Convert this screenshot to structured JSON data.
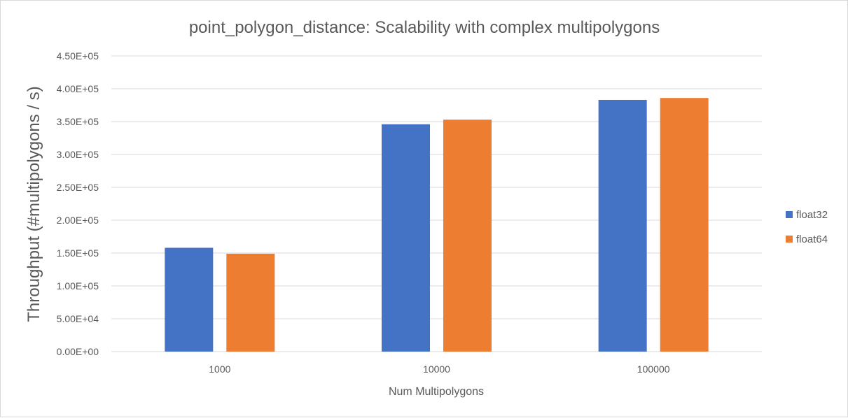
{
  "chart_data": {
    "type": "bar",
    "title": "point_polygon_distance: Scalability with complex multipolygons",
    "xlabel": "Num Multipolygons",
    "ylabel": "Throughput (#multipolygons / s)",
    "categories": [
      "1000",
      "10000",
      "100000"
    ],
    "series": [
      {
        "name": "float32",
        "color": "#4472c4",
        "values": [
          158000,
          346000,
          383000
        ]
      },
      {
        "name": "float64",
        "color": "#ed7d31",
        "values": [
          149000,
          353000,
          386000
        ]
      }
    ],
    "ylim": [
      0,
      450000
    ],
    "yticks": [
      {
        "value": 0,
        "label": "0.00E+00"
      },
      {
        "value": 50000,
        "label": "5.00E+04"
      },
      {
        "value": 100000,
        "label": "1.00E+05"
      },
      {
        "value": 150000,
        "label": "1.50E+05"
      },
      {
        "value": 200000,
        "label": "2.00E+05"
      },
      {
        "value": 250000,
        "label": "2.50E+05"
      },
      {
        "value": 300000,
        "label": "3.00E+05"
      },
      {
        "value": 350000,
        "label": "3.50E+05"
      },
      {
        "value": 400000,
        "label": "4.00E+05"
      },
      {
        "value": 450000,
        "label": "4.50E+05"
      }
    ],
    "grid": true,
    "legend_position": "right"
  }
}
